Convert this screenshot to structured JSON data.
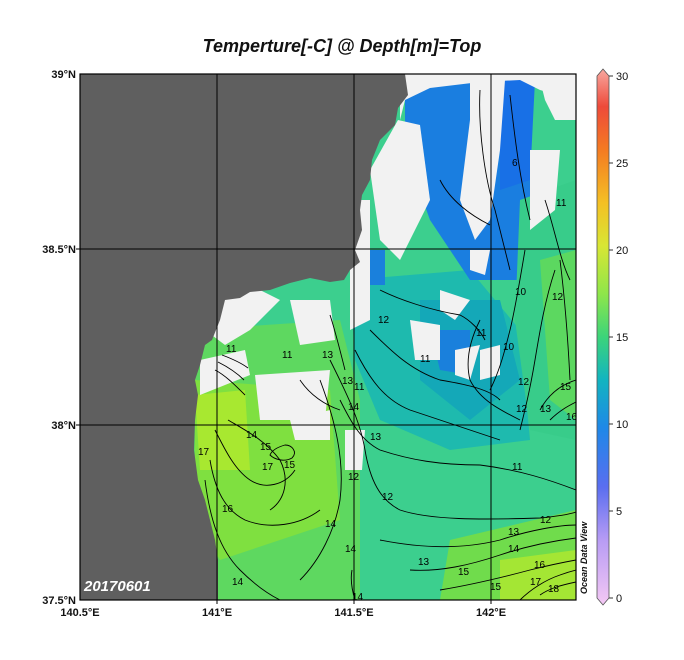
{
  "title": "Temperture[-C] @ Depth[m]=Top",
  "date_stamp": "20170601",
  "watermark": "Ocean Data View",
  "lat_ticks": [
    "39°N",
    "38.5°N",
    "38°N",
    "37.5°N"
  ],
  "lon_ticks": [
    "140.5°E",
    "141°E",
    "141.5°E",
    "142°E"
  ],
  "colorbar": {
    "ticks": [
      "30",
      "25",
      "20",
      "15",
      "10",
      "5",
      "0"
    ],
    "min": 0,
    "max": 30
  },
  "contour_labels": {
    "c6": "6",
    "c11a": "11",
    "c11b": "11",
    "c11c": "11",
    "c11d": "11",
    "c10a": "10",
    "c10b": "10",
    "c12a": "12",
    "c12b": "12",
    "c12c": "12",
    "c12d": "12",
    "c12e": "12",
    "c13a": "13",
    "c13b": "13",
    "c13c": "13",
    "c13d": "13",
    "c13e": "13",
    "c14a": "14",
    "c14b": "14",
    "c14c": "14",
    "c14d": "14",
    "c14e": "14",
    "c15a": "15",
    "c15b": "15",
    "c15c": "15",
    "c16a": "16",
    "c16b": "16",
    "c17": "17",
    "c18": "18",
    "c11w": "11"
  },
  "colors": {
    "land": "#5f5f5f",
    "nodata": "#f2f2f2",
    "grid": "#000000"
  }
}
